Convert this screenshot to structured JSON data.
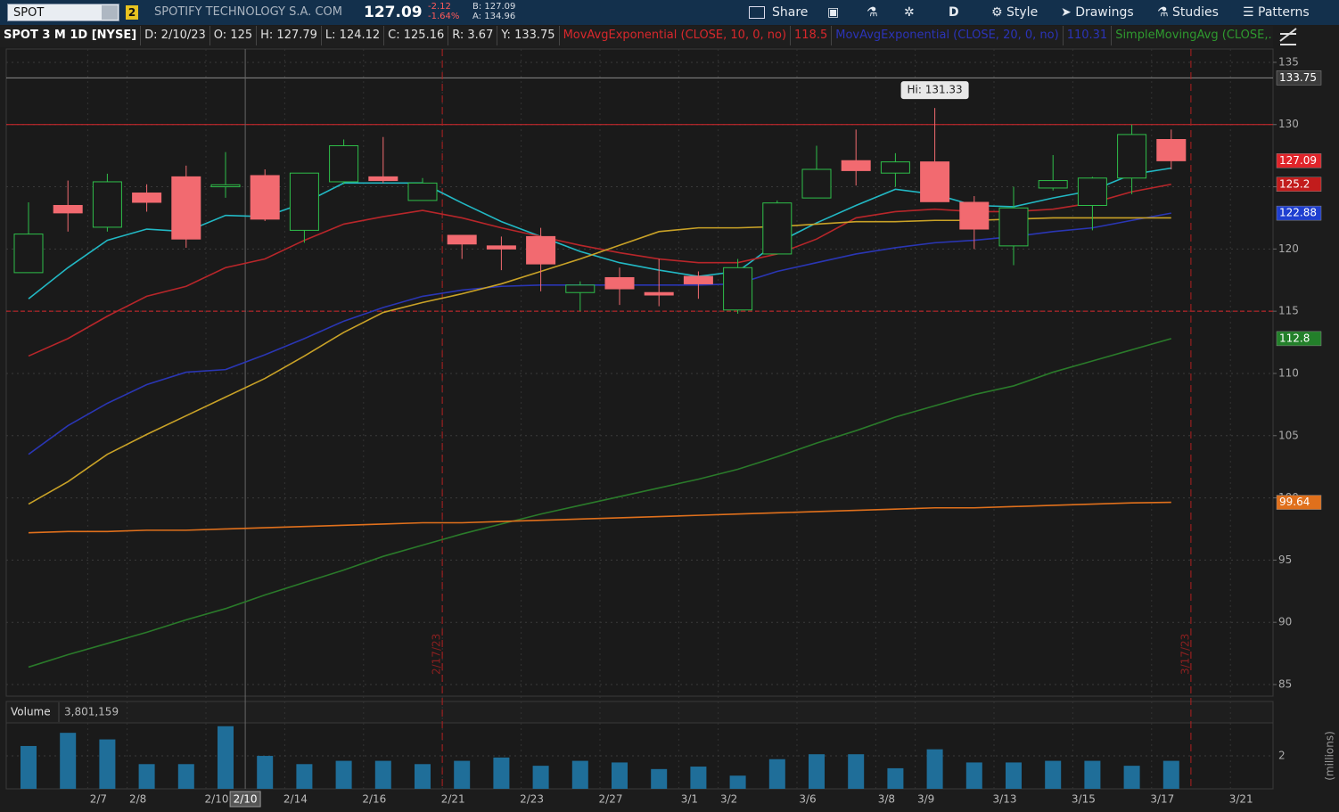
{
  "toolbar": {
    "symbol": "SPOT",
    "badge": "2",
    "company": "SPOTIFY TECHNOLOGY S.A. COM",
    "last": "127.09",
    "change": "-2.12",
    "change_pct": "-1.64%",
    "bid": "B: 127.09",
    "ask": "A: 134.96",
    "buttons": [
      "Share",
      "D",
      "Style",
      "Drawings",
      "Studies",
      "Patterns"
    ]
  },
  "header": {
    "symbol_label": "SPOT 3 M 1D [NYSE]",
    "items": [
      "D: 2/10/23",
      "O: 125",
      "H: 127.79",
      "L: 124.12",
      "C: 125.16",
      "R: 3.67",
      "Y: 133.75"
    ],
    "studies": [
      {
        "name": "MovAvgExponential (CLOSE, 10, 0, no)",
        "value": "118.5",
        "color": "#d8282c"
      },
      {
        "name": "MovAvgExponential (CLOSE, 20, 0, no)",
        "value": "110.31",
        "color": "#2b34b8"
      },
      {
        "name": "SimpleMovingAvg (CLOSE,...",
        "color": "#2f9a2f"
      }
    ]
  },
  "chart_data": [
    {
      "type": "candlestick",
      "ylim": [
        84.14,
        136.07
      ],
      "yticks": [
        85,
        90,
        95,
        100,
        105,
        110,
        115,
        120,
        125,
        130,
        135
      ],
      "grid": true,
      "up_color": "#2fbf4a",
      "down_color": "#f26a70",
      "open": [
        118.1,
        123.5,
        121.75,
        124.5,
        125.8,
        125,
        125.9,
        121.5,
        125.4,
        125.8,
        123.9,
        121.1,
        120.25,
        121,
        116.5,
        117.7,
        116.5,
        117.8,
        115.1,
        119.6,
        124.1,
        127.1,
        126.1,
        127,
        123.75,
        120.25,
        124.9,
        123.5,
        125.7,
        128.8
      ],
      "high": [
        123.75,
        125.5,
        126.05,
        125.2,
        126.7,
        127.79,
        126.4,
        126.1,
        128.8,
        129,
        125.7,
        121.1,
        121,
        121.7,
        117.4,
        118.5,
        119.2,
        118.2,
        119.2,
        123.9,
        128.3,
        129.6,
        127.7,
        131.33,
        124.25,
        125,
        127.55,
        125.8,
        130,
        129.6
      ],
      "low": [
        118.1,
        121.4,
        121.4,
        123,
        120.1,
        124.12,
        122.25,
        120.5,
        125.2,
        125.3,
        123.9,
        119.2,
        118.3,
        116.6,
        115,
        115.5,
        115.4,
        116,
        114.8,
        119.6,
        124.1,
        125.1,
        125,
        123.8,
        120,
        118.7,
        124.7,
        121.5,
        124.4,
        126.4
      ],
      "close": [
        121.2,
        122.9,
        125.4,
        123.75,
        120.8,
        125.16,
        122.4,
        126.1,
        128.3,
        125.5,
        125.3,
        120.4,
        120,
        118.8,
        117.1,
        116.8,
        116.3,
        117.2,
        118.5,
        123.7,
        126.4,
        126.3,
        127,
        123.8,
        121.6,
        123.3,
        125.5,
        125.7,
        129.2,
        127.09
      ],
      "overlays": [
        {
          "color": "#22b8c4",
          "values": [
            116,
            118.5,
            120.7,
            121.6,
            121.4,
            122.7,
            122.6,
            123.7,
            125.3,
            125.3,
            125.3,
            123.7,
            122.2,
            121,
            119.8,
            118.9,
            118.3,
            117.8,
            118.2,
            120.5,
            122.1,
            123.5,
            124.8,
            124.4,
            123.5,
            123.4,
            124.1,
            124.7,
            126,
            126.5
          ]
        },
        {
          "color": "#b8262a",
          "values": [
            111.4,
            112.8,
            114.6,
            116.2,
            117,
            118.5,
            119.2,
            120.7,
            122,
            122.6,
            123.1,
            122.5,
            121.7,
            121,
            120.3,
            119.7,
            119.2,
            118.9,
            118.9,
            119.6,
            120.8,
            122.5,
            123,
            123.2,
            123,
            123,
            123.2,
            123.7,
            124.6,
            125.2
          ]
        },
        {
          "color": "#2a36b4",
          "values": [
            103.5,
            105.8,
            107.6,
            109.1,
            110.1,
            110.31,
            111.5,
            112.8,
            114.2,
            115.3,
            116.2,
            116.7,
            117,
            117.1,
            117.1,
            117.1,
            117.1,
            117.1,
            117.2,
            118.2,
            118.9,
            119.6,
            120.1,
            120.5,
            120.7,
            121,
            121.4,
            121.7,
            122.3,
            122.88
          ]
        },
        {
          "color": "#c9a227",
          "values": [
            99.5,
            101.3,
            103.5,
            105.1,
            106.6,
            108.1,
            109.6,
            111.4,
            113.3,
            114.9,
            115.7,
            116.4,
            117.2,
            118.2,
            119.2,
            120.3,
            121.4,
            121.7,
            121.7,
            121.8,
            122,
            122.2,
            122.2,
            122.3,
            122.3,
            122.4,
            122.5,
            122.5,
            122.5,
            122.5
          ]
        },
        {
          "color": "#2a7a2a",
          "values": [
            86.4,
            87.4,
            88.3,
            89.2,
            90.2,
            91.1,
            92.2,
            93.2,
            94.2,
            95.3,
            96.2,
            97.1,
            97.9,
            98.7,
            99.4,
            100.1,
            100.8,
            101.5,
            102.3,
            103.3,
            104.4,
            105.4,
            106.5,
            107.4,
            108.3,
            109,
            110.1,
            111,
            111.9,
            112.8
          ]
        },
        {
          "color": "#e0701c",
          "values": [
            97.2,
            97.3,
            97.3,
            97.4,
            97.4,
            97.5,
            97.6,
            97.7,
            97.8,
            97.9,
            98,
            98,
            98.1,
            98.2,
            98.3,
            98.4,
            98.5,
            98.6,
            98.7,
            98.8,
            98.9,
            99,
            99.1,
            99.2,
            99.2,
            99.3,
            99.4,
            99.5,
            99.6,
            99.64
          ]
        }
      ],
      "levels": [
        {
          "value": 133.75,
          "color": "#8a8a8a"
        },
        {
          "value": 130,
          "color": "#d8282c"
        },
        {
          "value": 115,
          "color": "#d8282c",
          "dashed": true
        }
      ],
      "price_labels": [
        {
          "value": 133.75,
          "color": "#3c3c3c"
        },
        {
          "value": 127.09,
          "color": "#e0242a"
        },
        {
          "value": 125.2,
          "color": "#c21c1c"
        },
        {
          "value": 122.88,
          "color": "#1f3fd0"
        },
        {
          "value": 112.8,
          "color": "#23802a"
        },
        {
          "value": 99.64,
          "color": "#e0701c"
        }
      ],
      "high_label": {
        "label": "Hi: 131.33",
        "value": 131.33
      },
      "markers": [
        {
          "label": "2/17/23",
          "x": 10.5
        },
        {
          "label": "3/17/23",
          "x": 29.5
        }
      ]
    },
    {
      "type": "bar",
      "title": "Volume",
      "readout": "3,801,159",
      "y_label": "(millions)",
      "color": "#1f6e99",
      "ylim": [
        0,
        3.95
      ],
      "yticks": [
        2
      ],
      "categories": [
        null,
        null,
        "2/7",
        "2/8",
        null,
        "2/10",
        null,
        "2/14",
        null,
        "2/16",
        null,
        "2/21",
        null,
        "2/23",
        null,
        "2/27",
        null,
        "3/1",
        "3/2",
        null,
        "3/6",
        null,
        "3/8",
        "3/9",
        null,
        "3/13",
        null,
        "3/15",
        null,
        "3/17",
        null,
        "3/21"
      ],
      "values": [
        2.6,
        3.4,
        3,
        1.5,
        1.5,
        3.8,
        2,
        1.5,
        1.7,
        1.7,
        1.5,
        1.7,
        1.9,
        1.4,
        1.7,
        1.6,
        1.2,
        1.35,
        0.8,
        1.8,
        2.1,
        2.1,
        1.25,
        2.4,
        1.6,
        1.6,
        1.7,
        1.7,
        1.4,
        1.7,
        null,
        null
      ],
      "cursor": {
        "label": "2/10",
        "x": 5.5
      }
    }
  ]
}
